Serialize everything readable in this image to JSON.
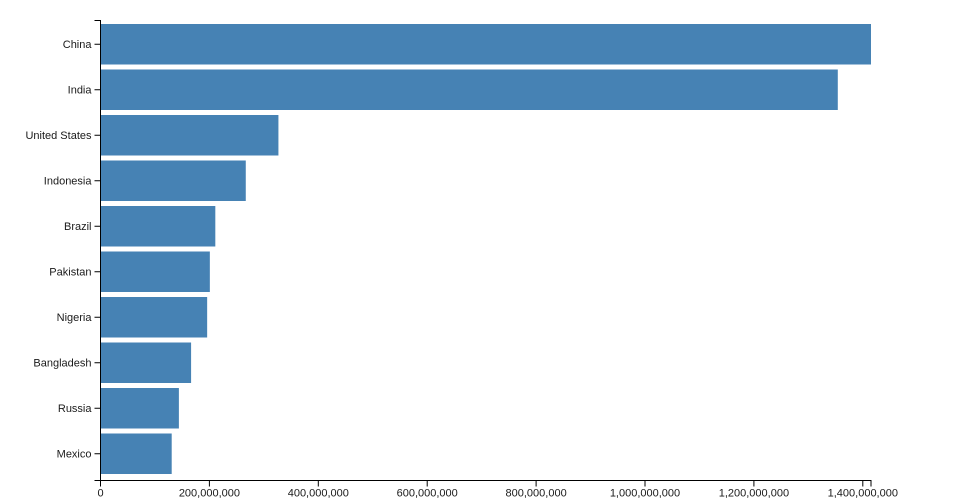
{
  "chart_data": {
    "type": "bar",
    "orientation": "horizontal",
    "title": "",
    "xlabel": "",
    "ylabel": "",
    "categories": [
      "China",
      "India",
      "United States",
      "Indonesia",
      "Brazil",
      "Pakistan",
      "Nigeria",
      "Bangladesh",
      "Russia",
      "Mexico"
    ],
    "values": [
      1415045928,
      1354051854,
      326766748,
      266794980,
      210867954,
      200813818,
      195875237,
      166368149,
      143964709,
      130759074
    ],
    "xlim": [
      0,
      1415045928
    ],
    "x_ticks": [
      0,
      200000000,
      400000000,
      600000000,
      800000000,
      1000000000,
      1200000000,
      1400000000
    ],
    "x_tick_labels": [
      "0",
      "200,000,000",
      "400,000,000",
      "600,000,000",
      "800,000,000",
      "1,000,000,000",
      "1,200,000,000",
      "1,400,000,000"
    ],
    "grid": false,
    "legend": false,
    "bar_color": "#4682b4",
    "axis_color": "#000000",
    "text_color": "#1a1a1a"
  }
}
